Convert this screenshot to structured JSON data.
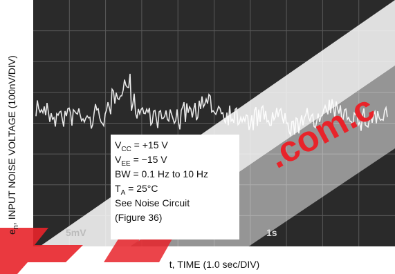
{
  "figure": {
    "y_axis_label": {
      "symbol": "e",
      "subscript": "n",
      "text": ", INPUT NOISE VOLTAGE (100nV/DIV)"
    },
    "x_axis_label": "t, TIME (1.0 sec/DIV)",
    "scope_labels": {
      "vertical_scale": "5mV",
      "time_scale": "1s"
    },
    "conditions": [
      {
        "main": "V",
        "subscript": "CC",
        "rest": " = +15 V"
      },
      {
        "main": "V",
        "subscript": "EE",
        "rest": " = −15 V"
      },
      {
        "main": "BW = 0.1 Hz to 10 Hz",
        "subscript": "",
        "rest": ""
      },
      {
        "main": "T",
        "subscript": "A",
        "rest": " = 25°C"
      },
      {
        "main": "See Noise Circuit",
        "subscript": "",
        "rest": ""
      },
      {
        "main": "(Figure 36)",
        "subscript": "",
        "rest": ""
      }
    ],
    "watermark": ".com.c"
  }
}
